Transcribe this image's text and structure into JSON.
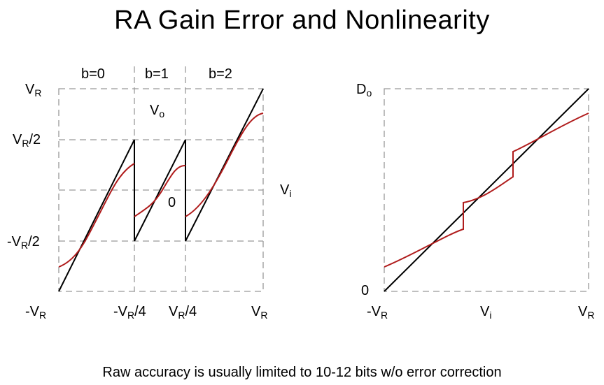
{
  "title": "RA Gain Error and Nonlinearity",
  "footer": "Raw accuracy is usually limited to 10-12 bits w/o error correction",
  "left_plot": {
    "segments": [
      "b=0",
      "b=1",
      "b=2"
    ],
    "y_labels": {
      "top": {
        "main": "V",
        "sub": "R",
        "suffix": ""
      },
      "half": {
        "main": "V",
        "sub": "R",
        "suffix": "/2"
      },
      "neg_half": {
        "main": "-V",
        "sub": "R",
        "suffix": "/2"
      }
    },
    "x_labels": {
      "min": {
        "main": "-V",
        "sub": "R",
        "suffix": ""
      },
      "neg_quarter": {
        "main": "-V",
        "sub": "R",
        "suffix": "/4"
      },
      "quarter": {
        "main": "V",
        "sub": "R",
        "suffix": "/4"
      },
      "max": {
        "main": "V",
        "sub": "R",
        "suffix": ""
      }
    },
    "output_label": {
      "main": "V",
      "sub": "o"
    },
    "input_label": {
      "main": "V",
      "sub": "i"
    },
    "zero": "0"
  },
  "right_plot": {
    "y_label": {
      "main": "D",
      "sub": "o"
    },
    "zero": "0",
    "x_labels": {
      "min": {
        "main": "-V",
        "sub": "R"
      },
      "mid": {
        "main": "V",
        "sub": "i"
      },
      "max": {
        "main": "V",
        "sub": "R"
      }
    }
  },
  "colors": {
    "ideal": "#000000",
    "actual": "#b01c1c",
    "grid": "#999999"
  }
}
